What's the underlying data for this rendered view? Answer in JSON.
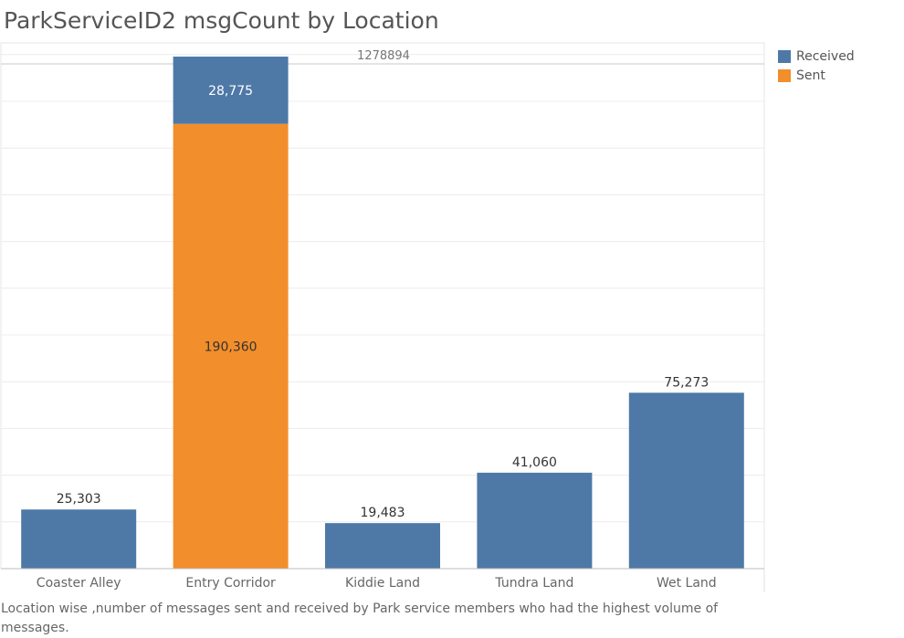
{
  "title": "ParkServiceID2 msgCount by Location",
  "caption": "Location wise ,number of messages sent and received by Park service members who had the  highest volume of messages.",
  "colors": {
    "received": "#4e79a7",
    "sent": "#f28e2b"
  },
  "chart_data": {
    "type": "bar",
    "stacked": true,
    "title": "ParkServiceID2 msgCount by Location",
    "categories": [
      "Coaster Alley",
      "Entry Corridor",
      "Kiddie Land",
      "Tundra Land",
      "Wet Land"
    ],
    "series": [
      {
        "name": "Received",
        "values": [
          25303,
          28775,
          19483,
          41060,
          75273
        ],
        "color": "#4e79a7"
      },
      {
        "name": "Sent",
        "values": [
          0,
          190360,
          0,
          0,
          0
        ],
        "color": "#f28e2b"
      }
    ],
    "data_labels": {
      "Received": [
        "25,303",
        "28,775",
        "19,483",
        "41,060",
        "75,273"
      ],
      "Sent": [
        "",
        "190,360",
        "",
        "",
        ""
      ]
    },
    "reference_line": {
      "label": "1278894"
    },
    "ylim": [
      0,
      225000
    ],
    "grid": true,
    "legend_position": "right"
  }
}
